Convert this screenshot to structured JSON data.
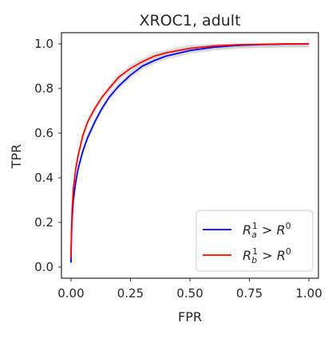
{
  "chart_data": {
    "type": "line",
    "title": "XROC1, adult",
    "xlabel": "FPR",
    "ylabel": "TPR",
    "xlim": [
      -0.04,
      1.04
    ],
    "ylim": [
      -0.05,
      1.05
    ],
    "x_ticks": [
      0.0,
      0.25,
      0.5,
      0.75,
      1.0
    ],
    "x_tick_labels": [
      "0.00",
      "0.25",
      "0.50",
      "0.75",
      "1.00"
    ],
    "y_ticks": [
      0.0,
      0.2,
      0.4,
      0.6,
      0.8,
      1.0
    ],
    "y_tick_labels": [
      "0.0",
      "0.2",
      "0.4",
      "0.6",
      "0.8",
      "1.0"
    ],
    "grid": false,
    "legend_position": "bottom-right",
    "series": [
      {
        "name": "R_a^1 > R^0",
        "color": "#0000ff",
        "band_color": "#c8c8c8",
        "x": [
          0.0,
          0.002,
          0.005,
          0.01,
          0.02,
          0.03,
          0.05,
          0.07,
          0.1,
          0.13,
          0.16,
          0.2,
          0.25,
          0.3,
          0.35,
          0.4,
          0.5,
          0.6,
          0.7,
          0.8,
          0.9,
          1.0
        ],
        "y": [
          0.02,
          0.14,
          0.22,
          0.3,
          0.38,
          0.44,
          0.52,
          0.58,
          0.65,
          0.71,
          0.76,
          0.81,
          0.86,
          0.9,
          0.925,
          0.945,
          0.97,
          0.985,
          0.993,
          0.997,
          0.999,
          1.0
        ]
      },
      {
        "name": "R_b^1 > R^0",
        "color": "#ff0000",
        "band_color": "#c8c8c8",
        "x": [
          0.0,
          0.002,
          0.005,
          0.01,
          0.02,
          0.03,
          0.05,
          0.07,
          0.1,
          0.13,
          0.16,
          0.2,
          0.25,
          0.3,
          0.35,
          0.4,
          0.5,
          0.6,
          0.7,
          0.8,
          0.9,
          1.0
        ],
        "y": [
          0.04,
          0.16,
          0.26,
          0.35,
          0.44,
          0.5,
          0.59,
          0.65,
          0.71,
          0.76,
          0.8,
          0.85,
          0.89,
          0.92,
          0.945,
          0.96,
          0.98,
          0.99,
          0.996,
          0.998,
          1.0,
          1.0
        ]
      }
    ]
  }
}
